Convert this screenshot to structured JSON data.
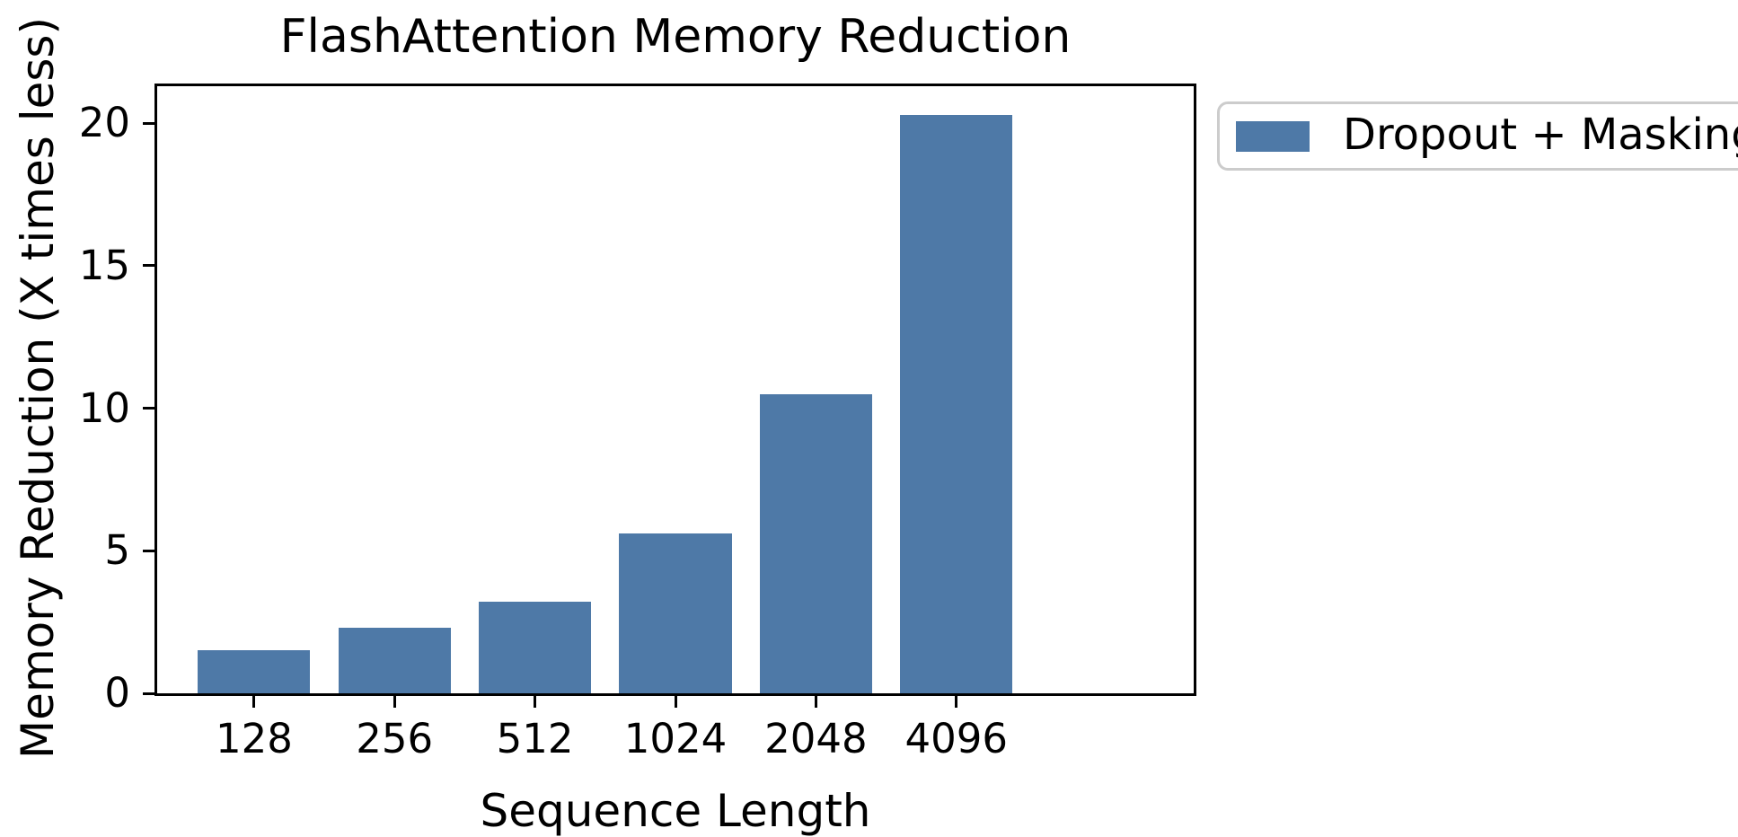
{
  "figure": {
    "title": "FlashAttention Memory Reduction"
  },
  "chart_data": {
    "type": "bar",
    "title": "FlashAttention Memory Reduction",
    "xlabel": "Sequence Length",
    "ylabel": "Memory Reduction (X times less)",
    "categories": [
      "128",
      "256",
      "512",
      "1024",
      "2048",
      "4096"
    ],
    "series": [
      {
        "name": "Dropout + Masking",
        "values": [
          1.5,
          2.3,
          3.2,
          5.6,
          10.5,
          20.3
        ]
      }
    ],
    "yticks": [
      0,
      5,
      10,
      15,
      20
    ],
    "ylim": [
      0,
      21.3
    ],
    "bar_width_fraction": 0.8,
    "grid": false,
    "legend": {
      "label": "Dropout + Masking",
      "position": "outside-upper-right"
    },
    "colors": {
      "bar": "#4E79A7",
      "text": "#000000",
      "spine": "#000000",
      "legend_border": "#cccccc",
      "background": "#ffffff"
    }
  }
}
